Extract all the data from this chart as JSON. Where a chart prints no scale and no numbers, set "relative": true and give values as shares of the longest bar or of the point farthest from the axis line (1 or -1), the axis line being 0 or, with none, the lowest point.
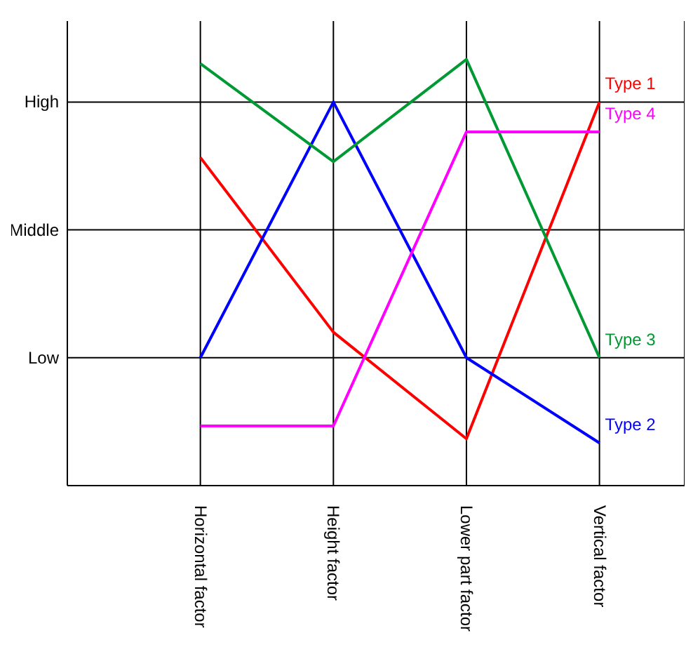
{
  "chart_data": {
    "type": "line",
    "relative": true,
    "categories": [
      "Horizontal factor",
      "Height factor",
      "Lower part factor",
      "Vertical factor"
    ],
    "series": [
      {
        "name": "Type 1",
        "color": "#ff0000",
        "values": [
          0.77,
          0.36,
          0.11,
          0.9
        ]
      },
      {
        "name": "Type 2",
        "color": "#0000ff",
        "values": [
          0.3,
          0.9,
          0.3,
          0.1
        ]
      },
      {
        "name": "Type 3",
        "color": "#009933",
        "values": [
          0.99,
          0.76,
          1,
          0.3
        ]
      },
      {
        "name": "Type 4",
        "color": "#ff00ff",
        "values": [
          0.14,
          0.14,
          0.83,
          0.83
        ]
      }
    ],
    "ref_lines": [
      {
        "axis": "y",
        "value": 0.3,
        "label": "Low",
        "color": "#000000"
      },
      {
        "axis": "y",
        "value": 0.6,
        "label": "Middle",
        "color": "#000000"
      },
      {
        "axis": "y",
        "value": 0.9,
        "label": "High",
        "color": "#000000"
      }
    ],
    "grid": "x",
    "marker": "none",
    "line_style": "solid"
  }
}
